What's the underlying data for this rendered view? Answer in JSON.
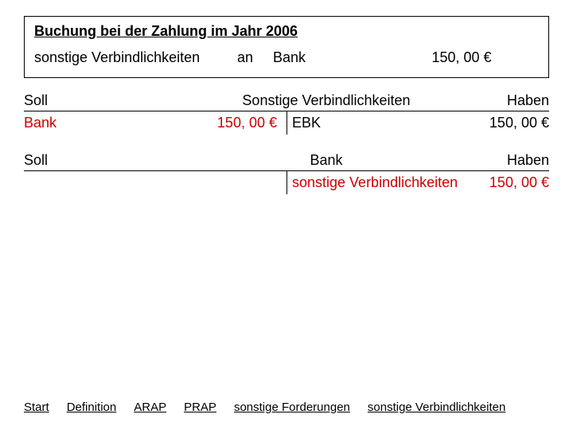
{
  "booking": {
    "title": "Buchung bei der Zahlung im Jahr 2006",
    "debit": "sonstige Verbindlichkeiten",
    "an": "an",
    "credit": "Bank",
    "amount": "150, 00 €"
  },
  "taccount1": {
    "soll": "Soll",
    "title": "Sonstige Verbindlichkeiten",
    "haben": "Haben",
    "left_label": "Bank",
    "left_amount": "150, 00 €",
    "right_label": "EBK",
    "right_amount": "150, 00 €"
  },
  "taccount2": {
    "soll": "Soll",
    "title": "Bank",
    "haben": "Haben",
    "left_label": "",
    "left_amount": "",
    "right_label": "sonstige Verbindlichkeiten",
    "right_amount": "150, 00 €"
  },
  "footer": {
    "start": "Start",
    "definition": "Definition",
    "arap": "ARAP",
    "prap": "PRAP",
    "sf": "sonstige Forderungen",
    "sv": "sonstige Verbindlichkeiten"
  }
}
